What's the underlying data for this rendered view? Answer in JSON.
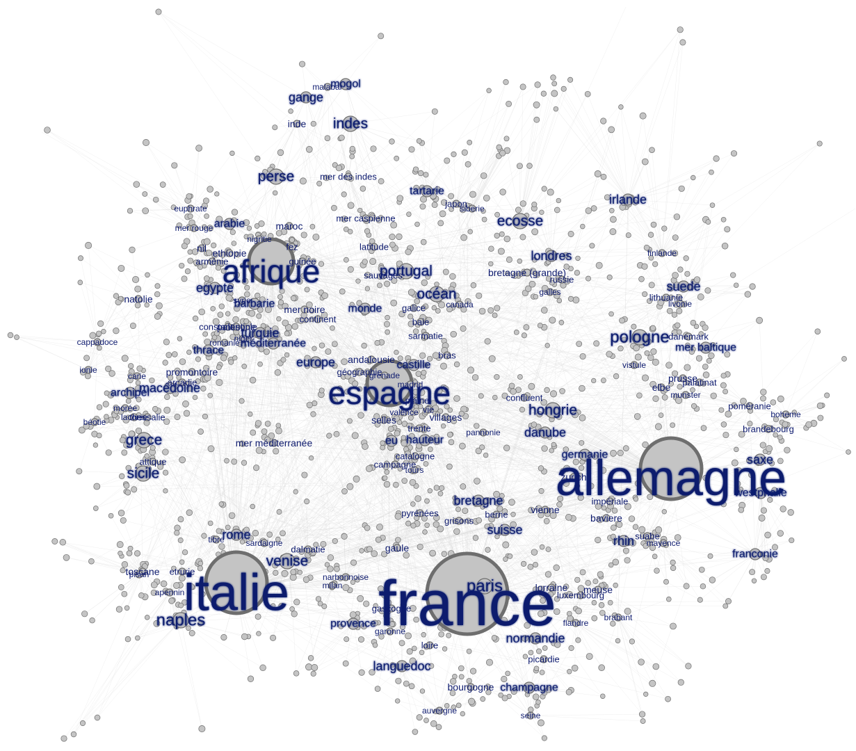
{
  "diagram": {
    "type": "network-graph",
    "node_color": "#c4c4c4",
    "node_stroke": "#6e6e6e",
    "edge_color": "#d6d6d6",
    "label_color": "#0d1a6e"
  },
  "nodes": [
    {
      "id": "france",
      "label": "france",
      "weight": 100,
      "hub": true
    },
    {
      "id": "allemagne",
      "label": "allemagne",
      "weight": 82,
      "hub": true
    },
    {
      "id": "italie",
      "label": "italie",
      "weight": 78,
      "hub": true
    },
    {
      "id": "espagne",
      "label": "espagne",
      "weight": 60,
      "hub": true
    },
    {
      "id": "afrique",
      "label": "afrique",
      "weight": 58,
      "hub": true
    },
    {
      "id": "paris",
      "label": "paris",
      "weight": 24
    },
    {
      "id": "naples",
      "label": "naples",
      "weight": 24
    },
    {
      "id": "pologne",
      "label": "pologne",
      "weight": 24
    },
    {
      "id": "hongrie",
      "label": "hongrie",
      "weight": 20
    },
    {
      "id": "perse",
      "label": "perse",
      "weight": 22
    },
    {
      "id": "indes",
      "label": "indes",
      "weight": 22
    },
    {
      "id": "grece",
      "label": "grece",
      "weight": 20
    },
    {
      "id": "sicile",
      "label": "sicile",
      "weight": 20
    },
    {
      "id": "venise",
      "label": "venise",
      "weight": 20
    },
    {
      "id": "rome",
      "label": "rome",
      "weight": 16
    },
    {
      "id": "ecosse",
      "label": "ecosse",
      "weight": 20
    },
    {
      "id": "irlande",
      "label": "irlande",
      "weight": 18
    },
    {
      "id": "ocean",
      "label": "océan",
      "weight": 20
    },
    {
      "id": "portugal",
      "label": "portugal",
      "weight": 20
    },
    {
      "id": "turquie",
      "label": "turquie",
      "weight": 18
    },
    {
      "id": "suisse",
      "label": "suisse",
      "weight": 18
    },
    {
      "id": "rhin",
      "label": "rhin",
      "weight": 18
    },
    {
      "id": "danube",
      "label": "danube",
      "weight": 18
    },
    {
      "id": "europe",
      "label": "europe",
      "weight": 17
    },
    {
      "id": "languedoc",
      "label": "languedoc",
      "weight": 17
    },
    {
      "id": "normandie",
      "label": "normandie",
      "weight": 16
    },
    {
      "id": "londres",
      "label": "londres",
      "weight": 16
    },
    {
      "id": "suede",
      "label": "suede",
      "weight": 16
    },
    {
      "id": "bretagne",
      "label": "bretagne",
      "weight": 16
    },
    {
      "id": "egypte",
      "label": "egypte",
      "weight": 16
    },
    {
      "id": "arabie",
      "label": "arabie",
      "weight": 15
    },
    {
      "id": "provence",
      "label": "provence",
      "weight": 14
    },
    {
      "id": "champagne",
      "label": "champagne",
      "weight": 14
    },
    {
      "id": "bourgogne",
      "label": "bourgogne",
      "weight": 13
    },
    {
      "id": "lorraine",
      "label": "lorraine",
      "weight": 13
    },
    {
      "id": "saxe",
      "label": "saxe",
      "weight": 16
    },
    {
      "id": "westphalie",
      "label": "westphalie",
      "weight": 14
    },
    {
      "id": "germanie",
      "label": "germanie",
      "weight": 14
    },
    {
      "id": "franconie",
      "label": "franconie",
      "weight": 14
    },
    {
      "id": "baviere",
      "label": "baviere",
      "weight": 13
    },
    {
      "id": "castille",
      "label": "castille",
      "weight": 15
    },
    {
      "id": "monde",
      "label": "monde",
      "weight": 14
    },
    {
      "id": "gange",
      "label": "gange",
      "weight": 16
    },
    {
      "id": "mogol",
      "label": "mogol",
      "weight": 14
    },
    {
      "id": "archipel",
      "label": "archipel",
      "weight": 14
    },
    {
      "id": "macedoine",
      "label": "macédoine",
      "weight": 16
    },
    {
      "id": "thrace",
      "label": "thrace",
      "weight": 14
    },
    {
      "id": "mediterranee",
      "label": "méditerranée",
      "weight": 14
    },
    {
      "id": "barbarie",
      "label": "barbarie",
      "weight": 14
    },
    {
      "id": "hauteur",
      "label": "hauteur",
      "weight": 14
    },
    {
      "id": "eu",
      "label": "eu",
      "weight": 14
    },
    {
      "id": "villages",
      "label": "villages",
      "weight": 13
    },
    {
      "id": "gaule",
      "label": "gaule",
      "weight": 13
    },
    {
      "id": "prusse",
      "label": "prusse",
      "weight": 13
    },
    {
      "id": "mer_baltique",
      "label": "mer baltique",
      "weight": 14
    },
    {
      "id": "tartarie",
      "label": "tartarie",
      "weight": 14
    },
    {
      "id": "vienne",
      "label": "vienne",
      "weight": 13
    },
    {
      "id": "meuse",
      "label": "meuse",
      "weight": 13
    },
    {
      "id": "mer_mediterranee",
      "label": "mer méditerranée",
      "weight": 12
    },
    {
      "id": "bretagne_grande",
      "label": "bretagne (grande)",
      "weight": 13
    },
    {
      "id": "ethiopie",
      "label": "ethiopie",
      "weight": 13
    },
    {
      "id": "toscane",
      "label": "toscane",
      "weight": 13
    },
    {
      "id": "inde",
      "label": "inde",
      "weight": 12
    },
    {
      "id": "mer_des_indes",
      "label": "mer des indes",
      "weight": 11
    },
    {
      "id": "mer_caspienne",
      "label": "mer caspienne",
      "weight": 11
    },
    {
      "id": "latitude",
      "label": "latitude",
      "weight": 11
    },
    {
      "id": "maroc",
      "label": "maroc",
      "weight": 12
    },
    {
      "id": "fez",
      "label": "fez",
      "weight": 11
    },
    {
      "id": "nigritie",
      "label": "nigritie",
      "weight": 10
    },
    {
      "id": "guinee",
      "label": "guinée",
      "weight": 11
    },
    {
      "id": "armenie",
      "label": "arménie",
      "weight": 11
    },
    {
      "id": "nil",
      "label": "nil",
      "weight": 12
    },
    {
      "id": "euphrate",
      "label": "euphrate",
      "weight": 10
    },
    {
      "id": "mer_rouge",
      "label": "mer rouge",
      "weight": 10
    },
    {
      "id": "natolie",
      "label": "natolie",
      "weight": 12
    },
    {
      "id": "cappadoce",
      "label": "cappadoce",
      "weight": 10
    },
    {
      "id": "ionie",
      "label": "ionie",
      "weight": 10
    },
    {
      "id": "carie",
      "label": "carie",
      "weight": 10
    },
    {
      "id": "moree",
      "label": "morée",
      "weight": 10
    },
    {
      "id": "beotie",
      "label": "béotie",
      "weight": 10
    },
    {
      "id": "laconie",
      "label": "laconie",
      "weight": 10
    },
    {
      "id": "thessalie",
      "label": "thessalie",
      "weight": 11
    },
    {
      "id": "arcadie",
      "label": "arcadie",
      "weight": 11
    },
    {
      "id": "promontoire",
      "label": "promontoire",
      "weight": 12
    },
    {
      "id": "attique",
      "label": "attique",
      "weight": 11
    },
    {
      "id": "syrie",
      "label": "syrie",
      "weight": 10
    },
    {
      "id": "palestine",
      "label": "palestine",
      "weight": 12
    },
    {
      "id": "constantinople",
      "label": "constantinople",
      "weight": 11
    },
    {
      "id": "romanie",
      "label": "romanie",
      "weight": 10
    },
    {
      "id": "niger",
      "label": "niger",
      "weight": 10
    },
    {
      "id": "mer_noire",
      "label": "mer noire",
      "weight": 12
    },
    {
      "id": "continent",
      "label": "continent",
      "weight": 11
    },
    {
      "id": "sauvages",
      "label": "sauvages",
      "weight": 11
    },
    {
      "id": "galice",
      "label": "galice",
      "weight": 11
    },
    {
      "id": "canada",
      "label": "canada",
      "weight": 10
    },
    {
      "id": "baie",
      "label": "baie",
      "weight": 11
    },
    {
      "id": "sarmatie",
      "label": "sarmatie",
      "weight": 11
    },
    {
      "id": "bras",
      "label": "bras",
      "weight": 11
    },
    {
      "id": "andalousie",
      "label": "andalousie",
      "weight": 13
    },
    {
      "id": "geographie",
      "label": "géographie",
      "weight": 11
    },
    {
      "id": "grenade",
      "label": "grenade",
      "weight": 10
    },
    {
      "id": "madrid",
      "label": "madrid",
      "weight": 10
    },
    {
      "id": "plaine",
      "label": "plaine",
      "weight": 11
    },
    {
      "id": "valence",
      "label": "valence",
      "weight": 10
    },
    {
      "id": "vie",
      "label": "vie",
      "weight": 11
    },
    {
      "id": "selles",
      "label": "selles",
      "weight": 13
    },
    {
      "id": "trente",
      "label": "trente",
      "weight": 11
    },
    {
      "id": "pannonie",
      "label": "pannonie",
      "weight": 10
    },
    {
      "id": "catalogne",
      "label": "catalogne",
      "weight": 11
    },
    {
      "id": "campagne",
      "label": "campagne",
      "weight": 11
    },
    {
      "id": "tours",
      "label": "tours",
      "weight": 10
    },
    {
      "id": "confluent",
      "label": "confluent",
      "weight": 11
    },
    {
      "id": "imperiale",
      "label": "impériale",
      "weight": 11
    },
    {
      "id": "zurich",
      "label": "zurich",
      "weight": 12
    },
    {
      "id": "pyrenees",
      "label": "pyrénées",
      "weight": 11
    },
    {
      "id": "grisons",
      "label": "grisons",
      "weight": 11
    },
    {
      "id": "berne",
      "label": "berne",
      "weight": 11
    },
    {
      "id": "japon",
      "label": "japon",
      "weight": 11
    },
    {
      "id": "siberie",
      "label": "siberie",
      "weight": 10
    },
    {
      "id": "malabar",
      "label": "malabar",
      "weight": 10
    },
    {
      "id": "russie",
      "label": "russie",
      "weight": 11
    },
    {
      "id": "galles",
      "label": "galles",
      "weight": 10
    },
    {
      "id": "finlande",
      "label": "finlande",
      "weight": 10
    },
    {
      "id": "lithuanie",
      "label": "lithuanie",
      "weight": 11
    },
    {
      "id": "livonie",
      "label": "livonie",
      "weight": 10
    },
    {
      "id": "danemark",
      "label": "danemark",
      "weight": 11
    },
    {
      "id": "vistule",
      "label": "vistule",
      "weight": 10
    },
    {
      "id": "elbe",
      "label": "elbe",
      "weight": 12
    },
    {
      "id": "palatinat",
      "label": "palatinat",
      "weight": 11
    },
    {
      "id": "munster",
      "label": "munster",
      "weight": 10
    },
    {
      "id": "pomeranie",
      "label": "poméranie",
      "weight": 11
    },
    {
      "id": "boheme",
      "label": "boheme",
      "weight": 10
    },
    {
      "id": "brandebourg",
      "label": "brandebourg",
      "weight": 11
    },
    {
      "id": "suabe",
      "label": "suabe",
      "weight": 11
    },
    {
      "id": "mayence",
      "label": "mayence",
      "weight": 10
    },
    {
      "id": "brabant",
      "label": "brabant",
      "weight": 10
    },
    {
      "id": "flandre",
      "label": "flandre",
      "weight": 10
    },
    {
      "id": "luxembourg",
      "label": "luxembourg",
      "weight": 11
    },
    {
      "id": "picardie",
      "label": "picardie",
      "weight": 11
    },
    {
      "id": "seine",
      "label": "seine",
      "weight": 10
    },
    {
      "id": "auvergne",
      "label": "auvergne",
      "weight": 10
    },
    {
      "id": "loire",
      "label": "loire",
      "weight": 11
    },
    {
      "id": "garonne",
      "label": "garonne",
      "weight": 10
    },
    {
      "id": "gascogne",
      "label": "gascogne",
      "weight": 11
    },
    {
      "id": "narbonnoise",
      "label": "narbonnoise",
      "weight": 10
    },
    {
      "id": "milan",
      "label": "milan",
      "weight": 10
    },
    {
      "id": "dalmatie",
      "label": "dalmatie",
      "weight": 11
    },
    {
      "id": "sardaigne",
      "label": "sardaigne",
      "weight": 10
    },
    {
      "id": "tibre",
      "label": "tibre",
      "weight": 10
    },
    {
      "id": "etrurie",
      "label": "etrurie",
      "weight": 11
    },
    {
      "id": "apennin",
      "label": "apennin",
      "weight": 10
    },
    {
      "id": "pisan",
      "label": "pisan",
      "weight": 10
    }
  ]
}
